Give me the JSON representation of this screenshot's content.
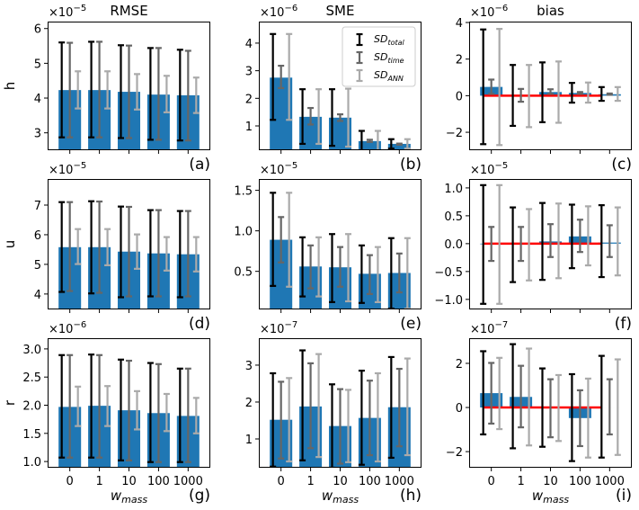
{
  "figure": {
    "x_tick_labels": [
      "0",
      "1",
      "10",
      "100",
      "1000"
    ],
    "x_label_base": "w",
    "x_label_sub": "mass",
    "bar_color": "#1f77b4",
    "zero_line_color": "#ff0000",
    "err_colors": {
      "total": "#000000",
      "time": "#666666",
      "ANN": "#aaaaaa"
    },
    "legend": {
      "panel": "b",
      "position": "top-right",
      "entries": [
        {
          "key": "total",
          "base": "SD",
          "sub": "total"
        },
        {
          "key": "time",
          "base": "SD",
          "sub": "time"
        },
        {
          "key": "ANN",
          "base": "SD",
          "sub": "ANN"
        }
      ]
    }
  },
  "chart_data": [
    {
      "id": "a",
      "type": "bar",
      "row": 0,
      "col": 0,
      "title": "RMSE",
      "ylabel": "h",
      "letter": "(a)",
      "offset": "-5",
      "ylim": [
        2.5,
        6.2
      ],
      "yticks": [
        3,
        4,
        5,
        6
      ],
      "tick_fmt": 0,
      "categories": [
        "0",
        "1",
        "10",
        "100",
        "1000"
      ],
      "values": [
        4.23,
        4.23,
        4.18,
        4.1,
        4.08
      ],
      "err_total": [
        [
          2.87,
          5.6
        ],
        [
          2.87,
          5.62
        ],
        [
          2.85,
          5.52
        ],
        [
          2.8,
          5.44
        ],
        [
          2.78,
          5.39
        ]
      ],
      "err_time": [
        [
          2.87,
          5.59
        ],
        [
          2.87,
          5.62
        ],
        [
          2.85,
          5.51
        ],
        [
          2.8,
          5.44
        ],
        [
          2.78,
          5.36
        ]
      ],
      "err_ANN": [
        [
          3.7,
          4.77
        ],
        [
          3.7,
          4.77
        ],
        [
          3.67,
          4.69
        ],
        [
          3.59,
          4.64
        ],
        [
          3.57,
          4.59
        ]
      ],
      "zero_line": false
    },
    {
      "id": "b",
      "type": "bar",
      "row": 0,
      "col": 1,
      "title": "SME",
      "ylabel": "",
      "letter": "(b)",
      "offset": "-6",
      "ylim": [
        0.12,
        4.78
      ],
      "yticks": [
        1,
        2,
        3,
        4
      ],
      "tick_fmt": 0,
      "categories": [
        "0",
        "1",
        "10",
        "100",
        "1000"
      ],
      "values": [
        2.75,
        1.33,
        1.3,
        0.45,
        0.35
      ],
      "err_total": [
        [
          1.22,
          4.33
        ],
        [
          0.35,
          2.33
        ],
        [
          0.28,
          2.33
        ],
        [
          0.1,
          0.82
        ],
        [
          0.18,
          0.52
        ]
      ],
      "err_time": [
        [
          2.37,
          3.18
        ],
        [
          1.05,
          1.65
        ],
        [
          1.18,
          1.42
        ],
        [
          0.42,
          0.5
        ],
        [
          0.32,
          0.36
        ]
      ],
      "err_ANN": [
        [
          1.22,
          4.33
        ],
        [
          0.35,
          2.33
        ],
        [
          0.25,
          2.35
        ],
        [
          0.1,
          0.82
        ],
        [
          0.18,
          0.52
        ]
      ],
      "zero_line": false
    },
    {
      "id": "c",
      "type": "bar",
      "row": 0,
      "col": 2,
      "title": "bias",
      "ylabel": "",
      "letter": "(c)",
      "offset": "-6",
      "ylim": [
        -2.98,
        4.05
      ],
      "yticks": [
        -2,
        0,
        2,
        4
      ],
      "tick_fmt": 0,
      "categories": [
        "0",
        "1",
        "10",
        "100",
        "1000"
      ],
      "values": [
        0.48,
        0.0,
        0.2,
        0.15,
        0.08
      ],
      "err_total": [
        [
          -2.65,
          3.62
        ],
        [
          -1.65,
          1.68
        ],
        [
          -1.45,
          1.82
        ],
        [
          -0.38,
          0.7
        ],
        [
          -0.28,
          0.47
        ]
      ],
      "err_time": [
        [
          0.1,
          0.88
        ],
        [
          -0.33,
          0.37
        ],
        [
          0.1,
          0.35
        ],
        [
          0.1,
          0.2
        ],
        [
          0.05,
          0.12
        ]
      ],
      "err_ANN": [
        [
          -2.7,
          3.65
        ],
        [
          -1.72,
          1.68
        ],
        [
          -1.48,
          1.87
        ],
        [
          -0.38,
          0.72
        ],
        [
          -0.28,
          0.47
        ]
      ],
      "zero_line": true
    },
    {
      "id": "d",
      "type": "bar",
      "row": 1,
      "col": 0,
      "title": "",
      "ylabel": "u",
      "letter": "(d)",
      "offset": "-5",
      "ylim": [
        3.48,
        7.88
      ],
      "yticks": [
        4,
        5,
        6,
        7
      ],
      "tick_fmt": 0,
      "categories": [
        "0",
        "1",
        "10",
        "100",
        "1000"
      ],
      "values": [
        5.58,
        5.58,
        5.43,
        5.37,
        5.34
      ],
      "err_total": [
        [
          4.07,
          7.1
        ],
        [
          4.02,
          7.13
        ],
        [
          3.89,
          6.95
        ],
        [
          3.92,
          6.83
        ],
        [
          3.89,
          6.8
        ]
      ],
      "err_time": [
        [
          4.1,
          7.1
        ],
        [
          4.04,
          7.12
        ],
        [
          3.92,
          6.94
        ],
        [
          3.92,
          6.83
        ],
        [
          3.92,
          6.8
        ]
      ],
      "err_ANN": [
        [
          5.01,
          6.19
        ],
        [
          4.97,
          6.19
        ],
        [
          4.85,
          6.01
        ],
        [
          4.79,
          5.92
        ],
        [
          4.76,
          5.92
        ]
      ],
      "zero_line": false
    },
    {
      "id": "e",
      "type": "bar",
      "row": 1,
      "col": 1,
      "title": "",
      "ylabel": "",
      "letter": "(e)",
      "offset": "-5",
      "ylim": [
        0.03,
        1.64
      ],
      "yticks": [
        0.5,
        1.0,
        1.5
      ],
      "tick_fmt": 1,
      "categories": [
        "0",
        "1",
        "10",
        "100",
        "1000"
      ],
      "values": [
        0.89,
        0.56,
        0.55,
        0.47,
        0.48
      ],
      "err_total": [
        [
          0.32,
          1.47
        ],
        [
          0.19,
          0.92
        ],
        [
          0.12,
          0.96
        ],
        [
          0.11,
          0.82
        ],
        [
          0.04,
          0.91
        ]
      ],
      "err_time": [
        [
          0.61,
          1.17
        ],
        [
          0.29,
          0.82
        ],
        [
          0.31,
          0.8
        ],
        [
          0.22,
          0.7
        ],
        [
          0.24,
          0.72
        ]
      ],
      "err_ANN": [
        [
          0.31,
          1.47
        ],
        [
          0.19,
          0.92
        ],
        [
          0.13,
          0.96
        ],
        [
          0.12,
          0.8
        ],
        [
          0.04,
          0.91
        ]
      ],
      "zero_line": false
    },
    {
      "id": "f",
      "type": "bar",
      "row": 1,
      "col": 2,
      "title": "",
      "ylabel": "",
      "letter": "(f)",
      "offset": "-5",
      "ylim": [
        -1.18,
        1.16
      ],
      "yticks": [
        -1.0,
        -0.5,
        0.0,
        0.5,
        1.0
      ],
      "tick_fmt": 1,
      "categories": [
        "0",
        "1",
        "10",
        "100",
        "1000"
      ],
      "values": [
        -0.01,
        0.0,
        0.04,
        0.13,
        0.02
      ],
      "err_total": [
        [
          -1.08,
          1.05
        ],
        [
          -0.69,
          0.65
        ],
        [
          -0.65,
          0.73
        ],
        [
          -0.44,
          0.7
        ],
        [
          -0.6,
          0.69
        ]
      ],
      "err_time": [
        [
          -0.31,
          0.3
        ],
        [
          -0.31,
          0.3
        ],
        [
          -0.24,
          0.35
        ],
        [
          -0.15,
          0.43
        ],
        [
          -0.24,
          0.33
        ]
      ],
      "err_ANN": [
        [
          -1.08,
          1.05
        ],
        [
          -0.66,
          0.62
        ],
        [
          -0.62,
          0.72
        ],
        [
          -0.39,
          0.67
        ],
        [
          -0.57,
          0.65
        ]
      ],
      "zero_line": true
    },
    {
      "id": "g",
      "type": "bar",
      "row": 2,
      "col": 0,
      "title": "",
      "ylabel": "r",
      "letter": "(g)",
      "offset": "-6",
      "ylim": [
        0.89,
        3.19
      ],
      "yticks": [
        1.0,
        1.5,
        2.0,
        2.5,
        3.0
      ],
      "tick_fmt": 1,
      "categories": [
        "0",
        "1",
        "10",
        "100",
        "1000"
      ],
      "values": [
        1.97,
        1.99,
        1.91,
        1.86,
        1.81
      ],
      "err_total": [
        [
          1.07,
          2.89
        ],
        [
          1.07,
          2.9
        ],
        [
          1.02,
          2.81
        ],
        [
          0.99,
          2.75
        ],
        [
          0.99,
          2.65
        ]
      ],
      "err_time": [
        [
          1.07,
          2.89
        ],
        [
          1.07,
          2.89
        ],
        [
          1.02,
          2.79
        ],
        [
          0.99,
          2.73
        ],
        [
          0.99,
          2.65
        ]
      ],
      "err_ANN": [
        [
          1.63,
          2.33
        ],
        [
          1.63,
          2.34
        ],
        [
          1.57,
          2.25
        ],
        [
          1.54,
          2.2
        ],
        [
          1.5,
          2.13
        ]
      ],
      "zero_line": false
    },
    {
      "id": "h",
      "type": "bar",
      "row": 2,
      "col": 1,
      "title": "",
      "ylabel": "",
      "letter": "(h)",
      "offset": "-7",
      "ylim": [
        0.22,
        3.73
      ],
      "yticks": [
        1,
        2,
        3
      ],
      "tick_fmt": 0,
      "categories": [
        "0",
        "1",
        "10",
        "100",
        "1000"
      ],
      "values": [
        1.52,
        1.88,
        1.35,
        1.57,
        1.86
      ],
      "err_total": [
        [
          0.25,
          2.78
        ],
        [
          0.42,
          3.4
        ],
        [
          0.22,
          2.48
        ],
        [
          0.3,
          2.85
        ],
        [
          0.49,
          3.22
        ]
      ],
      "err_time": [
        [
          0.47,
          2.55
        ],
        [
          0.75,
          3.05
        ],
        [
          0.33,
          2.35
        ],
        [
          0.56,
          2.58
        ],
        [
          0.8,
          2.9
        ]
      ],
      "err_ANN": [
        [
          0.39,
          2.65
        ],
        [
          0.51,
          3.3
        ],
        [
          0.37,
          2.33
        ],
        [
          0.39,
          2.78
        ],
        [
          0.56,
          3.18
        ]
      ],
      "zero_line": false
    },
    {
      "id": "i",
      "type": "bar",
      "row": 2,
      "col": 2,
      "title": "",
      "ylabel": "",
      "letter": "(i)",
      "offset": "-7",
      "ylim": [
        -2.73,
        3.14
      ],
      "yticks": [
        -2,
        0,
        2
      ],
      "tick_fmt": 0,
      "categories": [
        "0",
        "1",
        "10",
        "100",
        "1000"
      ],
      "values": [
        0.65,
        0.48,
        0.0,
        -0.48,
        0.0
      ],
      "err_total": [
        [
          -1.22,
          2.55
        ],
        [
          -1.85,
          2.87
        ],
        [
          -1.78,
          1.77
        ],
        [
          -2.43,
          1.51
        ],
        [
          -2.27,
          2.34
        ]
      ],
      "err_time": [
        [
          -0.73,
          2.02
        ],
        [
          -0.9,
          1.89
        ],
        [
          -1.35,
          1.28
        ],
        [
          -1.75,
          0.78
        ],
        [
          -1.22,
          1.28
        ]
      ],
      "err_ANN": [
        [
          -0.98,
          2.25
        ],
        [
          -1.72,
          2.67
        ],
        [
          -1.52,
          1.47
        ],
        [
          -2.27,
          1.31
        ],
        [
          -2.15,
          2.18
        ]
      ],
      "zero_line": true
    }
  ]
}
